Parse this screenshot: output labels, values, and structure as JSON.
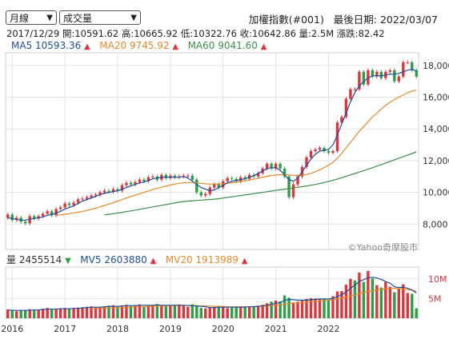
{
  "controls": {
    "period": "月線",
    "indicator": "成交量"
  },
  "header": {
    "index_name": "加權指數(#001)",
    "last_date_label": "最後日期:",
    "last_date": "2022/03/07",
    "ohlc_line": "2017/12/29  開:10591.62  高:10665.92  低:10322.76  收:10642.86  量:2.5M  漲跌:82.42"
  },
  "legend_price": [
    {
      "label": "MA5",
      "value": "10593.36",
      "color": "#1f4e9a",
      "trend": "▲"
    },
    {
      "label": "MA20",
      "value": "9745.92",
      "color": "#e8892b",
      "trend": "▲"
    },
    {
      "label": "MA60",
      "value": "9041.60",
      "color": "#3c8f4a",
      "trend": "▲"
    }
  ],
  "legend_volume": [
    {
      "label": "量",
      "value": "2455514",
      "color": "#333333",
      "trend": "▼"
    },
    {
      "label": "MV5",
      "value": "2603880",
      "color": "#1f4e9a",
      "trend": "▲"
    },
    {
      "label": "MV20",
      "value": "1913989",
      "color": "#e8892b",
      "trend": "▲"
    }
  ],
  "watermark": "©Yahoo奇摩股市",
  "colors": {
    "up": "#d9363e",
    "down": "#2e9e44",
    "ma5": "#1f4e9a",
    "ma20": "#e8892b",
    "ma60": "#3c8f4a",
    "grid": "#e4e4e4"
  },
  "chart_data": [
    {
      "type": "candlestick",
      "title": "加權指數(#001)",
      "x_labels": [
        "2016",
        "2017",
        "2018",
        "2019",
        "2020",
        "2021",
        "2022"
      ],
      "y_ticks": [
        8000,
        10000,
        12000,
        14000,
        16000,
        18000
      ],
      "ylim": [
        6400,
        18800
      ],
      "close": [
        8600,
        8250,
        8400,
        8150,
        8050,
        8500,
        8350,
        8500,
        8650,
        8800,
        8550,
        8950,
        9050,
        9300,
        9200,
        9350,
        9550,
        9600,
        9700,
        9800,
        9850,
        10000,
        10100,
        10050,
        10200,
        10100,
        10450,
        10600,
        10500,
        10650,
        10800,
        10700,
        10950,
        11000,
        10800,
        11100,
        10900,
        11050,
        10950,
        11000,
        11050,
        11050,
        10800,
        10000,
        9800,
        9900,
        10300,
        10500,
        10300,
        10700,
        10900,
        10850,
        10700,
        10950,
        10850,
        11100,
        11000,
        11200,
        11500,
        11800,
        11500,
        11800,
        11500,
        11000,
        9700,
        10500,
        11000,
        11600,
        12200,
        12600,
        12700,
        12800,
        12600,
        12500,
        12600,
        14400,
        14750,
        15900,
        16500,
        16500,
        17600,
        16800,
        17700,
        17300,
        17600,
        17200,
        17600,
        17700,
        17000,
        17300,
        18200,
        18200,
        17700,
        17300
      ],
      "ma5": [
        8400,
        8350,
        8300,
        8250,
        8250,
        8300,
        8350,
        8400,
        8450,
        8550,
        8600,
        8700,
        8800,
        8950,
        9050,
        9150,
        9300,
        9450,
        9550,
        9650,
        9750,
        9850,
        9950,
        10000,
        10050,
        10100,
        10200,
        10300,
        10400,
        10500,
        10600,
        10650,
        10750,
        10850,
        10900,
        10950,
        10950,
        10950,
        10950,
        10950,
        11000,
        10900,
        10700,
        10500,
        10300,
        10200,
        10100,
        10150,
        10300,
        10450,
        10600,
        10700,
        10750,
        10800,
        10850,
        10950,
        11050,
        11200,
        11350,
        11500,
        11550,
        11550,
        11400,
        11100,
        10800,
        10700,
        10900,
        11300,
        11700,
        12100,
        12400,
        12600,
        12650,
        12700,
        13000,
        13600,
        14300,
        15000,
        15700,
        16300,
        16700,
        17000,
        17200,
        17350,
        17350,
        17350,
        17400,
        17450,
        17450,
        17500,
        17600,
        17700,
        17750,
        17650
      ],
      "ma20": [
        null,
        null,
        null,
        null,
        null,
        null,
        null,
        null,
        null,
        null,
        null,
        8550,
        8580,
        8620,
        8660,
        8700,
        8750,
        8800,
        8860,
        8930,
        9000,
        9080,
        9170,
        9260,
        9350,
        9450,
        9540,
        9640,
        9730,
        9820,
        9910,
        10000,
        10090,
        10170,
        10250,
        10320,
        10390,
        10460,
        10520,
        10570,
        10600,
        10620,
        10620,
        10600,
        10570,
        10540,
        10520,
        10520,
        10530,
        10550,
        10580,
        10610,
        10640,
        10680,
        10720,
        10770,
        10830,
        10890,
        10950,
        11010,
        11060,
        11090,
        11110,
        11120,
        11100,
        11070,
        11060,
        11080,
        11130,
        11200,
        11300,
        11420,
        11560,
        11720,
        11900,
        12150,
        12450,
        12800,
        13150,
        13500,
        13850,
        14150,
        14450,
        14750,
        15000,
        15250,
        15480,
        15680,
        15850,
        16000,
        16150,
        16280,
        16380,
        16450
      ],
      "ma60": [
        null,
        null,
        null,
        null,
        null,
        null,
        null,
        null,
        null,
        null,
        null,
        null,
        null,
        null,
        null,
        null,
        null,
        null,
        null,
        null,
        null,
        null,
        8580,
        8620,
        8660,
        8700,
        8740,
        8790,
        8830,
        8880,
        8930,
        8980,
        9030,
        9080,
        9130,
        9180,
        9230,
        9280,
        9330,
        9380,
        9420,
        9450,
        9470,
        9490,
        9510,
        9530,
        9550,
        9570,
        9600,
        9640,
        9680,
        9720,
        9760,
        9800,
        9840,
        9880,
        9920,
        9960,
        10000,
        10040,
        10080,
        10120,
        10160,
        10200,
        10240,
        10280,
        10320,
        10360,
        10400,
        10450,
        10500,
        10560,
        10620,
        10690,
        10760,
        10840,
        10920,
        11010,
        11100,
        11190,
        11280,
        11370,
        11460,
        11550,
        11650,
        11750,
        11850,
        11950,
        12050,
        12150,
        12250,
        12350,
        12450,
        12550
      ]
    },
    {
      "type": "bar",
      "title": "成交量",
      "y_ticks_labels": [
        "5M",
        "10M"
      ],
      "y_ticks": [
        5,
        10
      ],
      "ylim": [
        0,
        13
      ],
      "values": [
        2.2,
        1.9,
        1.8,
        2.0,
        2.1,
        2.3,
        2.0,
        2.2,
        2.4,
        2.6,
        2.2,
        2.3,
        2.5,
        2.6,
        2.4,
        2.5,
        2.7,
        2.8,
        2.9,
        3.0,
        2.7,
        2.8,
        3.0,
        3.2,
        3.3,
        3.0,
        3.2,
        3.4,
        3.1,
        3.3,
        3.5,
        3.0,
        3.2,
        3.4,
        3.6,
        3.2,
        3.0,
        3.2,
        3.4,
        3.5,
        3.2,
        2.9,
        3.5,
        3.2,
        2.6,
        2.5,
        2.7,
        2.9,
        3.0,
        2.8,
        2.6,
        2.7,
        2.9,
        3.0,
        2.8,
        2.9,
        3.1,
        3.2,
        3.4,
        3.8,
        4.2,
        4.5,
        4.3,
        5.8,
        5.2,
        4.0,
        4.2,
        4.6,
        4.9,
        5.1,
        5.0,
        4.8,
        5.0,
        4.6,
        5.6,
        6.8,
        6.9,
        8.5,
        10.0,
        9.6,
        11.6,
        9.2,
        12.0,
        10.1,
        8.4,
        7.8,
        9.2,
        8.0,
        6.6,
        7.6,
        8.6,
        6.4,
        6.2,
        2.5
      ],
      "up": [
        true,
        false,
        true,
        false,
        false,
        true,
        false,
        true,
        true,
        true,
        false,
        true,
        true,
        true,
        false,
        true,
        true,
        true,
        true,
        true,
        true,
        true,
        true,
        false,
        true,
        false,
        true,
        true,
        false,
        true,
        true,
        false,
        true,
        true,
        false,
        true,
        false,
        true,
        false,
        true,
        true,
        true,
        false,
        false,
        false,
        true,
        true,
        true,
        false,
        true,
        true,
        false,
        false,
        true,
        false,
        true,
        false,
        true,
        true,
        true,
        false,
        true,
        false,
        false,
        false,
        true,
        true,
        true,
        true,
        true,
        true,
        true,
        false,
        false,
        true,
        true,
        true,
        true,
        true,
        false,
        true,
        false,
        true,
        false,
        true,
        false,
        true,
        true,
        false,
        true,
        true,
        true,
        false,
        false
      ],
      "mv5": [
        2.1,
        2.0,
        2.0,
        2.0,
        2.0,
        2.0,
        2.1,
        2.1,
        2.2,
        2.3,
        2.3,
        2.3,
        2.4,
        2.4,
        2.4,
        2.5,
        2.5,
        2.6,
        2.7,
        2.8,
        2.8,
        2.8,
        2.9,
        3.0,
        3.0,
        3.0,
        3.1,
        3.2,
        3.2,
        3.2,
        3.3,
        3.3,
        3.3,
        3.3,
        3.4,
        3.3,
        3.3,
        3.3,
        3.3,
        3.3,
        3.3,
        3.2,
        3.2,
        3.1,
        3.0,
        2.9,
        2.7,
        2.7,
        2.8,
        2.8,
        2.8,
        2.8,
        2.8,
        2.8,
        2.8,
        2.9,
        2.9,
        3.0,
        3.1,
        3.3,
        3.5,
        3.8,
        4.0,
        4.5,
        4.8,
        4.7,
        4.6,
        4.6,
        4.6,
        4.7,
        4.8,
        4.9,
        4.9,
        4.9,
        5.0,
        5.5,
        6.0,
        6.6,
        7.6,
        8.4,
        9.3,
        9.8,
        10.3,
        10.4,
        10.2,
        9.9,
        9.3,
        8.9,
        8.0,
        7.8,
        7.9,
        7.6,
        7.2,
        6.4
      ],
      "mv20": [
        null,
        null,
        null,
        null,
        null,
        null,
        null,
        null,
        null,
        null,
        null,
        null,
        null,
        null,
        null,
        null,
        null,
        null,
        null,
        2.4,
        2.4,
        2.5,
        2.5,
        2.6,
        2.6,
        2.7,
        2.7,
        2.8,
        2.8,
        2.9,
        2.9,
        2.9,
        3.0,
        3.0,
        3.1,
        3.1,
        3.1,
        3.2,
        3.2,
        3.2,
        3.2,
        3.2,
        3.2,
        3.2,
        3.1,
        3.1,
        3.1,
        3.0,
        3.0,
        3.0,
        2.9,
        2.9,
        2.9,
        2.9,
        2.9,
        2.9,
        2.9,
        3.0,
        3.0,
        3.1,
        3.2,
        3.3,
        3.4,
        3.6,
        3.7,
        3.8,
        3.9,
        4.0,
        4.1,
        4.2,
        4.3,
        4.4,
        4.5,
        4.6,
        4.7,
        4.9,
        5.1,
        5.3,
        5.6,
        5.9,
        6.2,
        6.5,
        6.8,
        7.0,
        7.2,
        7.4,
        7.5,
        7.6,
        7.6,
        7.5,
        7.4,
        7.3,
        7.1,
        6.8
      ]
    }
  ]
}
